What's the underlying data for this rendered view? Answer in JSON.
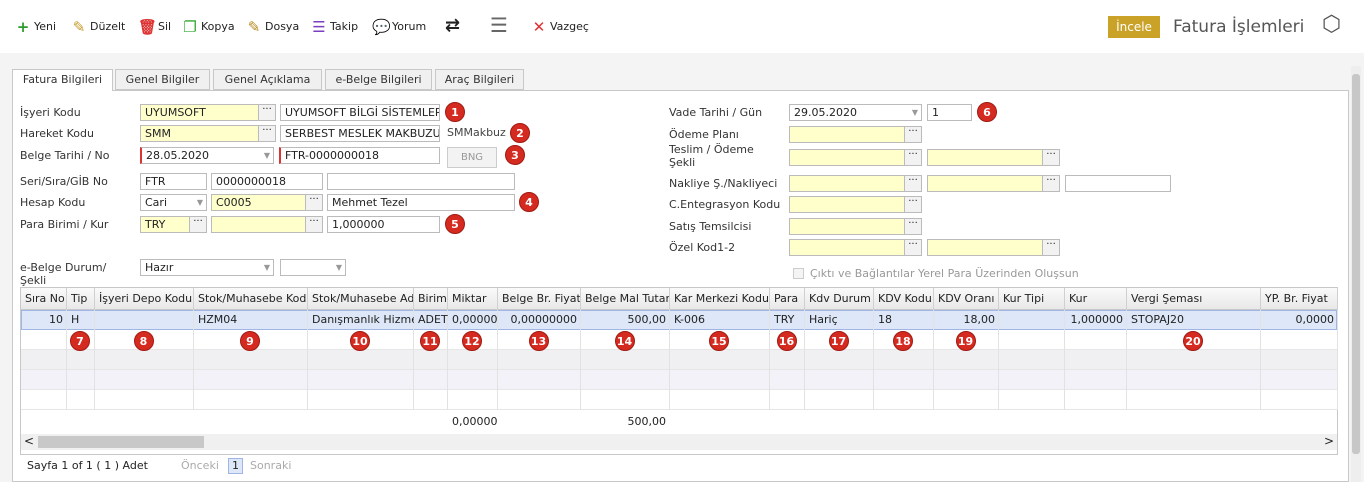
{
  "toolbar": {
    "buttons": [
      "Yeni",
      "Düzelt",
      "Sil",
      "Kopya",
      "Dosya",
      "Takip",
      "Yorum",
      "Vazgeç"
    ],
    "badge": "İncele",
    "title": "Fatura İşlemleri"
  },
  "tabs": [
    "Fatura Bilgileri",
    "Genel Bilgiler",
    "Genel Açıklama",
    "e-Belge Bilgileri",
    "Araç Bilgileri"
  ],
  "form": {
    "left": [
      {
        "label": "İşyeri Kodu",
        "values": [
          "UYUMSOFT",
          "UYUMSOFT BİLGİ SİSTEMLERİ"
        ],
        "marker": 1
      },
      {
        "label": "Hareket Kodu",
        "values": [
          "SMM",
          "SERBEST MESLEK MAKBUZU"
        ],
        "note": "SMMakbuz",
        "marker": 2
      },
      {
        "label": "Belge Tarihi / No",
        "values": [
          "28.05.2020",
          "FTR-0000000018"
        ],
        "button": "BNG",
        "marker": 3
      },
      {
        "label": "Seri/Sıra/GİB No",
        "values": [
          "FTR",
          "0000000018",
          null
        ]
      },
      {
        "label": "Hesap Kodu",
        "values": [
          "Cari",
          "C0005",
          "Mehmet Tezel"
        ],
        "marker": 4
      },
      {
        "label": "Para Birimi / Kur",
        "values": [
          "TRY",
          null,
          "1,000000"
        ],
        "marker": 5
      },
      {
        "label": "e-Belge Durum/Şekli",
        "values": [
          "Hazır",
          null
        ]
      }
    ],
    "right": [
      {
        "label": "Vade Tarihi / Gün",
        "values": [
          "29.05.2020",
          "1"
        ],
        "marker": 6
      },
      {
        "label": "Ödeme Planı",
        "values": [
          null
        ]
      },
      {
        "label": "Teslim / Ödeme Şekli",
        "values": [
          null,
          null
        ]
      },
      {
        "label": "Nakliye Ş./Nakliyeci",
        "values": [
          null,
          null,
          null
        ]
      },
      {
        "label": "C.Entegrasyon Kodu",
        "values": [
          null
        ]
      },
      {
        "label": "Satış Temsilcisi",
        "values": [
          null
        ]
      },
      {
        "label": "Özel Kod1-2",
        "values": [
          null,
          null
        ]
      }
    ],
    "checkbox": "Çıktı ve Bağlantılar Yerel Para Üzerinden Oluşsun"
  },
  "grid": {
    "columns": [
      "Sıra No",
      "Tip",
      "İşyeri Depo Kodu",
      "Stok/Muhasebe Kodu",
      "Stok/Muhasebe Adı",
      "Birim",
      "Miktar",
      "Belge Br. Fiyat",
      "Belge Mal Tutarı",
      "Kar Merkezi Kodu",
      "Para",
      "Kdv Durum",
      "KDV Kodu",
      "KDV Oranı",
      "Kur Tipi",
      "Kur",
      "Vergi Şeması",
      "YP. Br. Fiyat"
    ],
    "rows": [
      [
        "10",
        "H",
        null,
        "HZM04",
        "Danışmanlık Hizmeti",
        "ADET",
        "0,00000",
        "0,00000000",
        "500,00",
        "K-006",
        "TRY",
        "Hariç",
        "18",
        "18,00",
        null,
        "1,000000",
        "STOPAJ20",
        "0,0000"
      ]
    ],
    "markers": [
      null,
      7,
      8,
      9,
      10,
      11,
      12,
      13,
      14,
      15,
      16,
      17,
      18,
      19,
      null,
      null,
      20,
      null
    ],
    "totals": [
      null,
      null,
      null,
      null,
      null,
      null,
      "0,00000",
      null,
      "500,00",
      null,
      null,
      null,
      null,
      null,
      null,
      null,
      null,
      null
    ]
  },
  "pager": {
    "info": "Sayfa 1 of 1 ( 1 ) Adet",
    "prev": "Önceki",
    "page": "1",
    "next": "Sonraki"
  }
}
